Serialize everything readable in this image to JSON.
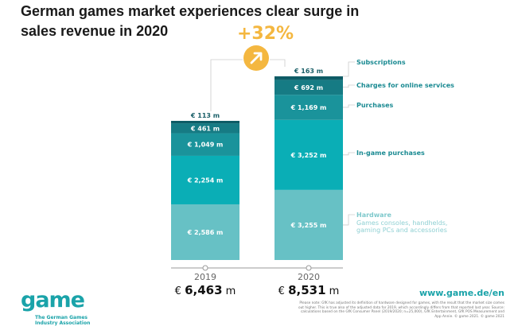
{
  "chart_data": {
    "type": "stacked-bar",
    "title": "German games market experiences clear surge in sales revenue in 2020",
    "growth_label": "+32%",
    "unit": "€ m",
    "categories": [
      "2019",
      "2020"
    ],
    "totals": [
      "6,463",
      "8,531"
    ],
    "series": [
      {
        "name": "Hardware",
        "subtitle": "Games consoles, handhelds, gaming PCs and accessories",
        "values": [
          2586,
          3255
        ],
        "labels": [
          "2,586",
          "3,255"
        ],
        "color": "#67c1c5"
      },
      {
        "name": "In-game purchases",
        "values": [
          2254,
          3252
        ],
        "labels": [
          "2,254",
          "3,252"
        ],
        "color": "#0aaeb6"
      },
      {
        "name": "Purchases",
        "values": [
          1049,
          1169
        ],
        "labels": [
          "1,049",
          "1,169"
        ],
        "color": "#1a939b"
      },
      {
        "name": "Charges for online services",
        "values": [
          461,
          692
        ],
        "labels": [
          "461",
          "692"
        ],
        "color": "#167b84"
      },
      {
        "name": "Subscriptions",
        "values": [
          113,
          163
        ],
        "labels": [
          "113",
          "163"
        ],
        "color": "#0e5c66"
      }
    ]
  },
  "footer": {
    "url": "www.game.de/en",
    "note": "Please note: GfK has adjusted its definition of hardware designed for games, with the result that the market size comes out higher. This is true also of the adjusted data for 2019, which accordingly differs from that reported last year. Source: calculations based on the GfK Consumer Panel (2019/2020; n=25,000), GfK Entertainment, GfK POS Measurement and App Annie. © game 2021. © game 2021",
    "logo": "game",
    "logo_sub": "The German Games Industry Association"
  }
}
